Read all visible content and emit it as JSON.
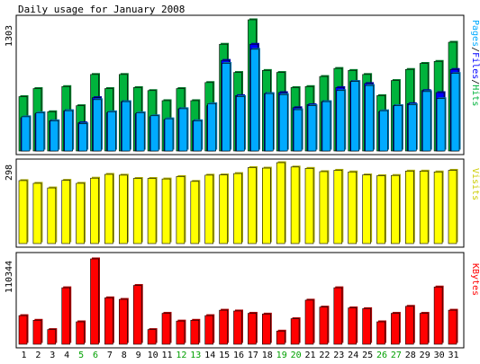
{
  "chart_data": [
    {
      "type": "bar",
      "title": "Daily usage for January 2008",
      "categories": [
        "1",
        "2",
        "3",
        "4",
        "5",
        "6",
        "7",
        "8",
        "9",
        "10",
        "11",
        "12",
        "13",
        "14",
        "15",
        "16",
        "17",
        "18",
        "19",
        "20",
        "21",
        "22",
        "23",
        "24",
        "25",
        "26",
        "27",
        "28",
        "29",
        "30",
        "31"
      ],
      "weekend_days": [
        "5",
        "6",
        "12",
        "13",
        "19",
        "20",
        "26",
        "27"
      ],
      "ymax_label": "1303",
      "ylim": [
        0,
        1303
      ],
      "series": [
        {
          "name": "Hits",
          "color": "#00b33c",
          "values": [
            540,
            620,
            390,
            640,
            450,
            760,
            620,
            760,
            630,
            600,
            500,
            620,
            500,
            680,
            1060,
            780,
            1303,
            800,
            780,
            630,
            640,
            740,
            820,
            800,
            760,
            550,
            700,
            810,
            870,
            890,
            1080
          ]
        },
        {
          "name": "Files",
          "color": "#0000ff",
          "values": [
            330,
            370,
            300,
            400,
            280,
            530,
            380,
            490,
            370,
            340,
            310,
            420,
            300,
            450,
            900,
            550,
            1060,
            570,
            580,
            430,
            460,
            490,
            630,
            690,
            670,
            390,
            450,
            470,
            600,
            580,
            810
          ]
        },
        {
          "name": "Pages",
          "color": "#00aaff",
          "values": [
            340,
            380,
            300,
            400,
            270,
            510,
            390,
            490,
            380,
            350,
            320,
            420,
            300,
            470,
            870,
            540,
            1010,
            570,
            560,
            410,
            450,
            490,
            600,
            690,
            650,
            400,
            450,
            460,
            590,
            520,
            770
          ]
        }
      ]
    },
    {
      "type": "bar",
      "ymax_label": "298",
      "ylim": [
        0,
        298
      ],
      "series": [
        {
          "name": "Visits",
          "color": "#ffff00",
          "values": [
            232,
            222,
            205,
            233,
            222,
            241,
            255,
            252,
            240,
            240,
            238,
            247,
            229,
            252,
            253,
            258,
            280,
            278,
            298,
            282,
            277,
            265,
            270,
            264,
            253,
            250,
            251,
            267,
            267,
            264,
            270
          ]
        }
      ]
    },
    {
      "type": "bar",
      "ymax_label": "110344",
      "ylim": [
        0,
        110344
      ],
      "series": [
        {
          "name": "KBytes",
          "color": "#ff0000",
          "values": [
            37000,
            31000,
            19000,
            73000,
            29000,
            110344,
            60000,
            58000,
            76000,
            19000,
            40000,
            30000,
            31000,
            37000,
            44000,
            43000,
            40000,
            39000,
            17000,
            33000,
            57000,
            48000,
            73000,
            47000,
            46000,
            29000,
            40000,
            49000,
            40000,
            74000,
            44000
          ]
        }
      ]
    }
  ]
}
